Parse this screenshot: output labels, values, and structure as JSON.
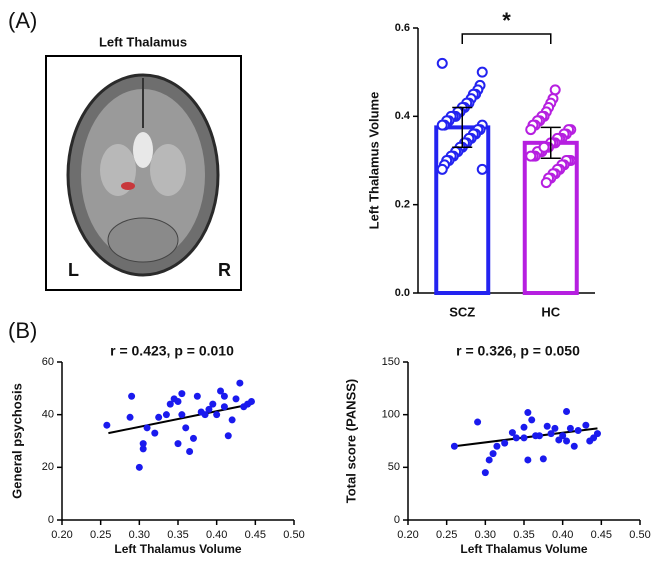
{
  "panel_labels": [
    "(A)",
    "(B)"
  ],
  "brain": {
    "title": "Left Thalamus",
    "left": "L",
    "right": "R"
  },
  "chart_data": [
    {
      "type": "bar",
      "ylabel": "Left Thalamus Volume",
      "categories": [
        "SCZ",
        "HC"
      ],
      "values": [
        0.375,
        0.34
      ],
      "errors": [
        0.045,
        0.035
      ],
      "colors": [
        "#2323f0",
        "#b61fe0"
      ],
      "points": [
        [
          0.52,
          0.5,
          0.47,
          0.46,
          0.45,
          0.45,
          0.44,
          0.43,
          0.43,
          0.42,
          0.42,
          0.41,
          0.41,
          0.4,
          0.4,
          0.4,
          0.39,
          0.39,
          0.38,
          0.38,
          0.38,
          0.37,
          0.37,
          0.36,
          0.36,
          0.35,
          0.35,
          0.34,
          0.34,
          0.33,
          0.33,
          0.32,
          0.32,
          0.31,
          0.31,
          0.3,
          0.3,
          0.29,
          0.28,
          0.28
        ],
        [
          0.46,
          0.44,
          0.43,
          0.42,
          0.41,
          0.4,
          0.4,
          0.39,
          0.39,
          0.38,
          0.38,
          0.37,
          0.37,
          0.37,
          0.36,
          0.36,
          0.35,
          0.35,
          0.35,
          0.34,
          0.34,
          0.34,
          0.33,
          0.33,
          0.33,
          0.32,
          0.32,
          0.32,
          0.31,
          0.31,
          0.31,
          0.3,
          0.3,
          0.3,
          0.29,
          0.29,
          0.28,
          0.28,
          0.27,
          0.27,
          0.26,
          0.26,
          0.25,
          0.33
        ]
      ],
      "annotation": "*",
      "ylim": [
        0,
        0.6
      ],
      "yticks": [
        {
          "value": 0,
          "label": "0.0"
        },
        0.2,
        0.4,
        0.6
      ]
    },
    {
      "type": "scatter",
      "title": "r = 0.423, p = 0.010",
      "xlabel": "Left Thalamus Volume",
      "ylabel": "General  psychosis",
      "color": "#1a1aee",
      "x": [
        0.258,
        0.29,
        0.288,
        0.3,
        0.305,
        0.305,
        0.31,
        0.32,
        0.325,
        0.335,
        0.34,
        0.345,
        0.35,
        0.35,
        0.355,
        0.355,
        0.36,
        0.365,
        0.37,
        0.375,
        0.38,
        0.385,
        0.39,
        0.395,
        0.4,
        0.405,
        0.41,
        0.41,
        0.415,
        0.42,
        0.425,
        0.43,
        0.435,
        0.44,
        0.445
      ],
      "y": [
        36,
        47,
        39,
        20,
        29,
        27,
        35,
        33,
        39,
        40,
        44,
        46,
        29,
        45,
        48,
        40,
        35,
        26,
        31,
        47,
        41,
        40,
        42,
        44,
        40,
        49,
        47,
        43,
        32,
        38,
        46,
        52,
        43,
        44,
        45
      ],
      "fit": {
        "x": [
          0.26,
          0.445
        ],
        "y": [
          33,
          44
        ]
      },
      "xlim": [
        0.2,
        0.5
      ],
      "xticks": [
        {
          "value": 0.2,
          "label": "0.20"
        },
        0.25,
        {
          "value": 0.3,
          "label": "0.30"
        },
        0.35,
        {
          "value": 0.4,
          "label": "0.40"
        },
        0.45,
        {
          "value": 0.5,
          "label": "0.50"
        }
      ],
      "ylim": [
        0,
        60
      ],
      "yticks": [
        0,
        20,
        40,
        60
      ]
    },
    {
      "type": "scatter",
      "title": "r = 0.326, p = 0.050",
      "xlabel": "Left Thalamus Volume",
      "ylabel": "Total score (PANSS)",
      "color": "#1a1aee",
      "x": [
        0.26,
        0.29,
        0.3,
        0.305,
        0.31,
        0.315,
        0.325,
        0.335,
        0.34,
        0.35,
        0.35,
        0.355,
        0.355,
        0.36,
        0.365,
        0.37,
        0.375,
        0.38,
        0.385,
        0.39,
        0.395,
        0.4,
        0.405,
        0.405,
        0.41,
        0.415,
        0.42,
        0.43,
        0.435,
        0.44,
        0.445
      ],
      "y": [
        70,
        93,
        45,
        57,
        63,
        70,
        73,
        83,
        78,
        88,
        78,
        102,
        57,
        95,
        80,
        80,
        58,
        89,
        82,
        87,
        76,
        80,
        103,
        75,
        87,
        70,
        85,
        90,
        75,
        78,
        82
      ],
      "fit": {
        "x": [
          0.26,
          0.445
        ],
        "y": [
          70,
          87
        ]
      },
      "xlim": [
        0.2,
        0.5
      ],
      "xticks": [
        {
          "value": 0.2,
          "label": "0.20"
        },
        0.25,
        {
          "value": 0.3,
          "label": "0.30"
        },
        0.35,
        {
          "value": 0.4,
          "label": "0.40"
        },
        0.45,
        {
          "value": 0.5,
          "label": "0.50"
        }
      ],
      "ylim": [
        0,
        150
      ],
      "yticks": [
        0,
        50,
        100,
        150
      ]
    }
  ]
}
